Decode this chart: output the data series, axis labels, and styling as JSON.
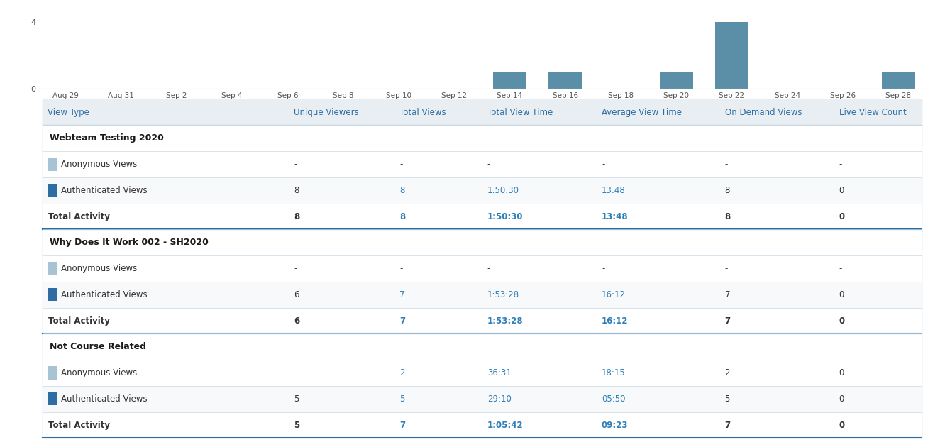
{
  "chart": {
    "bar_dates": [
      "Aug 29",
      "Aug 31",
      "Sep 2",
      "Sep 4",
      "Sep 6",
      "Sep 8",
      "Sep 10",
      "Sep 12",
      "Sep 14",
      "Sep 16",
      "Sep 18",
      "Sep 20",
      "Sep 22",
      "Sep 24",
      "Sep 26",
      "Sep 28"
    ],
    "bar_values": [
      0,
      0,
      0,
      0,
      0,
      0,
      0,
      0,
      1,
      1,
      0,
      1,
      4,
      0,
      0,
      1
    ],
    "bar_color": "#5b8fa8",
    "ylim": [
      0,
      4.5
    ],
    "yticks": [
      0,
      4
    ],
    "bg_color": "#ffffff"
  },
  "table": {
    "header_bg": "#e8eef2",
    "header_text_color": "#2e6da4",
    "section_bg": "#ffffff",
    "section_text_color": "#1a1a1a",
    "row_bg1": "#ffffff",
    "row_bg2": "#f7f9fb",
    "border_color": "#c8d8e4",
    "section_border_color": "#2e6da4",
    "text_color_link": "#2e7fb8",
    "text_color_normal": "#333333",
    "anon_color": "#a8c4d4",
    "auth_color": "#2e6da4",
    "columns": [
      "View Type",
      "Unique Viewers",
      "Total Views",
      "Total View Time",
      "Average View Time",
      "On Demand Views",
      "Live View Count"
    ],
    "col_widths": [
      0.28,
      0.12,
      0.1,
      0.13,
      0.14,
      0.13,
      0.12
    ],
    "sections": [
      {
        "title": "Webteam Testing 2020",
        "rows": [
          {
            "type": "anonymous",
            "label": "Anonymous Views",
            "unique": "-",
            "total_views": "-",
            "total_time": "-",
            "avg_time": "-",
            "on_demand": "-",
            "live": "-"
          },
          {
            "type": "authenticated",
            "label": "Authenticated Views",
            "unique": "8",
            "total_views": "8",
            "total_time": "1:50:30",
            "avg_time": "13:48",
            "on_demand": "8",
            "live": "0"
          },
          {
            "type": "total",
            "label": "Total Activity",
            "unique": "8",
            "total_views": "8",
            "total_time": "1:50:30",
            "avg_time": "13:48",
            "on_demand": "8",
            "live": "0"
          }
        ]
      },
      {
        "title": "Why Does It Work 002 - SH2020",
        "rows": [
          {
            "type": "anonymous",
            "label": "Anonymous Views",
            "unique": "-",
            "total_views": "-",
            "total_time": "-",
            "avg_time": "-",
            "on_demand": "-",
            "live": "-"
          },
          {
            "type": "authenticated",
            "label": "Authenticated Views",
            "unique": "6",
            "total_views": "7",
            "total_time": "1:53:28",
            "avg_time": "16:12",
            "on_demand": "7",
            "live": "0"
          },
          {
            "type": "total",
            "label": "Total Activity",
            "unique": "6",
            "total_views": "7",
            "total_time": "1:53:28",
            "avg_time": "16:12",
            "on_demand": "7",
            "live": "0"
          }
        ]
      },
      {
        "title": "Not Course Related",
        "rows": [
          {
            "type": "anonymous",
            "label": "Anonymous Views",
            "unique": "-",
            "total_views": "2",
            "total_time": "36:31",
            "avg_time": "18:15",
            "on_demand": "2",
            "live": "0"
          },
          {
            "type": "authenticated",
            "label": "Authenticated Views",
            "unique": "5",
            "total_views": "5",
            "total_time": "29:10",
            "avg_time": "05:50",
            "on_demand": "5",
            "live": "0"
          },
          {
            "type": "total",
            "label": "Total Activity",
            "unique": "5",
            "total_views": "7",
            "total_time": "1:05:42",
            "avg_time": "09:23",
            "on_demand": "7",
            "live": "0"
          }
        ]
      }
    ]
  }
}
